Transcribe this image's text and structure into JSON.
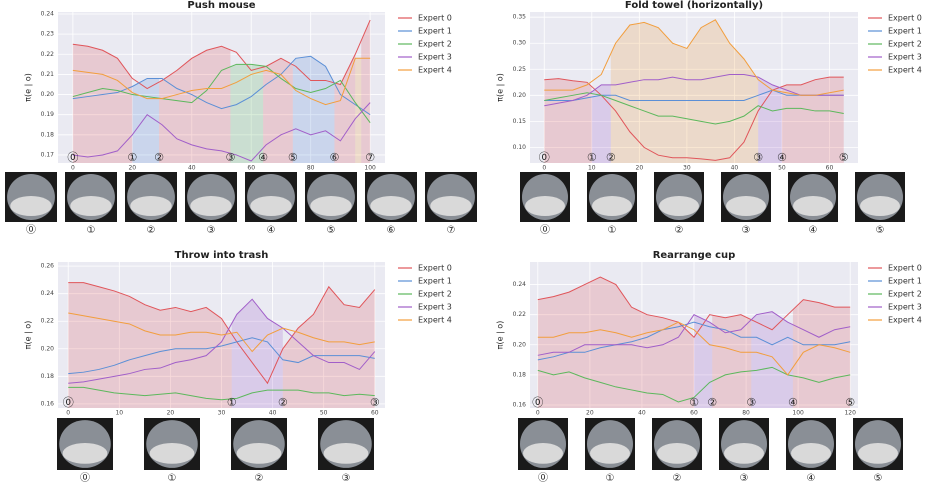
{
  "chart_data": [
    {
      "type": "line",
      "title": "Push mouse",
      "ylabel": "π(e | o)",
      "xlim": [
        -5,
        105
      ],
      "xticks": [
        0,
        20,
        40,
        60,
        80,
        100
      ],
      "ylim": [
        0.166,
        0.241
      ],
      "yticks": [
        0.17,
        0.18,
        0.19,
        {
          "value": 0.2,
          "label": "0.20"
        },
        0.21,
        0.22,
        0.23,
        0.24
      ],
      "x": [
        0,
        5,
        10,
        15,
        20,
        25,
        30,
        35,
        40,
        45,
        50,
        55,
        60,
        65,
        70,
        75,
        80,
        85,
        90,
        95,
        100
      ],
      "series": [
        {
          "name": "Expert 0",
          "color": "#e0555a",
          "values": [
            0.225,
            0.224,
            0.222,
            0.218,
            0.208,
            0.203,
            0.207,
            0.212,
            0.218,
            0.222,
            0.224,
            0.221,
            0.212,
            0.214,
            0.218,
            0.214,
            0.207,
            0.207,
            0.205,
            0.22,
            0.237
          ]
        },
        {
          "name": "Expert 1",
          "color": "#5b8fd6",
          "values": [
            0.198,
            0.199,
            0.2,
            0.201,
            0.204,
            0.208,
            0.208,
            0.203,
            0.2,
            0.196,
            0.193,
            0.195,
            0.199,
            0.205,
            0.21,
            0.218,
            0.219,
            0.214,
            0.2,
            0.195,
            0.19
          ]
        },
        {
          "name": "Expert 2",
          "color": "#5cb85c",
          "values": [
            0.199,
            0.201,
            0.203,
            0.202,
            0.2,
            0.199,
            0.198,
            0.197,
            0.196,
            0.202,
            0.212,
            0.215,
            0.215,
            0.214,
            0.208,
            0.203,
            0.201,
            0.203,
            0.207,
            0.196,
            0.186
          ]
        },
        {
          "name": "Expert 3",
          "color": "#a15fc9",
          "values": [
            0.17,
            0.169,
            0.17,
            0.172,
            0.18,
            0.19,
            0.185,
            0.178,
            0.175,
            0.173,
            0.172,
            0.17,
            0.167,
            0.175,
            0.18,
            0.183,
            0.18,
            0.182,
            0.177,
            0.188,
            0.196
          ]
        },
        {
          "name": "Expert 4",
          "color": "#f29e3d",
          "values": [
            0.212,
            0.211,
            0.21,
            0.207,
            0.201,
            0.198,
            0.198,
            0.2,
            0.202,
            0.203,
            0.203,
            0.206,
            0.21,
            0.212,
            0.21,
            0.202,
            0.198,
            0.195,
            0.197,
            0.218,
            0.218
          ]
        }
      ],
      "regions": [
        {
          "start": 0,
          "end": 20,
          "series": 0
        },
        {
          "start": 20,
          "end": 29,
          "series": 1
        },
        {
          "start": 29,
          "end": 53,
          "series": 0
        },
        {
          "start": 53,
          "end": 64,
          "series": 2
        },
        {
          "start": 64,
          "end": 74,
          "series": 0
        },
        {
          "start": 74,
          "end": 88,
          "series": 1
        },
        {
          "start": 88,
          "end": 95,
          "series": 0
        },
        {
          "start": 95,
          "end": 97,
          "series": 4
        },
        {
          "start": 97,
          "end": 100,
          "series": 0
        }
      ],
      "markers": [
        {
          "x": 0,
          "label": "⓪"
        },
        {
          "x": 20,
          "label": "①"
        },
        {
          "x": 29,
          "label": "②"
        },
        {
          "x": 53,
          "label": "③"
        },
        {
          "x": 64,
          "label": "④"
        },
        {
          "x": 74,
          "label": "⑤"
        },
        {
          "x": 88,
          "label": "⑥"
        },
        {
          "x": 100,
          "label": "⑦"
        }
      ]
    },
    {
      "type": "line",
      "title": "Fold towel (horizontally)",
      "ylabel": "π(e | o)",
      "xlim": [
        -3,
        66
      ],
      "xticks": [
        0,
        10,
        20,
        30,
        40,
        50,
        60
      ],
      "ylim": [
        0.07,
        0.36
      ],
      "yticks": [
        {
          "value": 0.1,
          "label": "0.10"
        },
        0.15,
        {
          "value": 0.2,
          "label": "0.20"
        },
        0.25,
        {
          "value": 0.3,
          "label": "0.30"
        },
        0.35
      ],
      "x": [
        0,
        3,
        6,
        9,
        12,
        15,
        18,
        21,
        24,
        27,
        30,
        33,
        36,
        39,
        42,
        45,
        48,
        51,
        54,
        57,
        60,
        63
      ],
      "series": [
        {
          "name": "Expert 0",
          "color": "#e0555a",
          "values": [
            0.23,
            0.232,
            0.228,
            0.225,
            0.2,
            0.17,
            0.13,
            0.1,
            0.085,
            0.08,
            0.08,
            0.078,
            0.075,
            0.08,
            0.11,
            0.17,
            0.21,
            0.22,
            0.22,
            0.23,
            0.235,
            0.235
          ]
        },
        {
          "name": "Expert 1",
          "color": "#5b8fd6",
          "values": [
            0.19,
            0.19,
            0.19,
            0.195,
            0.2,
            0.2,
            0.19,
            0.19,
            0.19,
            0.19,
            0.19,
            0.19,
            0.19,
            0.19,
            0.19,
            0.2,
            0.21,
            0.2,
            0.2,
            0.2,
            0.2,
            0.2
          ]
        },
        {
          "name": "Expert 2",
          "color": "#5cb85c",
          "values": [
            0.19,
            0.195,
            0.2,
            0.205,
            0.2,
            0.19,
            0.18,
            0.17,
            0.16,
            0.16,
            0.155,
            0.15,
            0.145,
            0.15,
            0.16,
            0.18,
            0.17,
            0.175,
            0.175,
            0.17,
            0.17,
            0.165
          ]
        },
        {
          "name": "Expert 3",
          "color": "#a15fc9",
          "values": [
            0.18,
            0.185,
            0.19,
            0.2,
            0.22,
            0.22,
            0.225,
            0.23,
            0.23,
            0.235,
            0.23,
            0.23,
            0.235,
            0.24,
            0.24,
            0.235,
            0.22,
            0.21,
            0.2,
            0.2,
            0.2,
            0.2
          ]
        },
        {
          "name": "Expert 4",
          "color": "#f29e3d",
          "values": [
            0.21,
            0.21,
            0.21,
            0.22,
            0.24,
            0.3,
            0.335,
            0.34,
            0.33,
            0.3,
            0.29,
            0.33,
            0.345,
            0.3,
            0.27,
            0.23,
            0.21,
            0.205,
            0.2,
            0.2,
            0.205,
            0.21
          ]
        }
      ],
      "regions": [
        {
          "start": 0,
          "end": 10,
          "series": 0
        },
        {
          "start": 10,
          "end": 14,
          "series": 3
        },
        {
          "start": 14,
          "end": 45,
          "series": 4
        },
        {
          "start": 45,
          "end": 50,
          "series": 3
        },
        {
          "start": 50,
          "end": 63,
          "series": 0
        }
      ],
      "markers": [
        {
          "x": 0,
          "label": "⓪"
        },
        {
          "x": 10,
          "label": "①"
        },
        {
          "x": 14,
          "label": "②"
        },
        {
          "x": 45,
          "label": "③"
        },
        {
          "x": 50,
          "label": "④"
        },
        {
          "x": 63,
          "label": "⑤"
        }
      ]
    },
    {
      "type": "line",
      "title": "Throw into trash",
      "ylabel": "π(e | o)",
      "xlim": [
        -2,
        62
      ],
      "xticks": [
        0,
        10,
        20,
        30,
        40,
        50,
        60
      ],
      "ylim": [
        0.157,
        0.263
      ],
      "yticks": [
        0.16,
        0.18,
        {
          "value": 0.2,
          "label": "0.20"
        },
        0.22,
        0.24,
        0.26
      ],
      "x": [
        0,
        3,
        6,
        9,
        12,
        15,
        18,
        21,
        24,
        27,
        30,
        33,
        36,
        39,
        42,
        45,
        48,
        51,
        54,
        57,
        60
      ],
      "series": [
        {
          "name": "Expert 0",
          "color": "#e0555a",
          "values": [
            0.248,
            0.248,
            0.245,
            0.242,
            0.238,
            0.232,
            0.228,
            0.23,
            0.227,
            0.23,
            0.222,
            0.205,
            0.19,
            0.175,
            0.2,
            0.215,
            0.225,
            0.245,
            0.232,
            0.23,
            0.243
          ]
        },
        {
          "name": "Expert 1",
          "color": "#5b8fd6",
          "values": [
            0.182,
            0.183,
            0.185,
            0.188,
            0.192,
            0.195,
            0.198,
            0.2,
            0.2,
            0.2,
            0.202,
            0.205,
            0.208,
            0.205,
            0.192,
            0.19,
            0.195,
            0.195,
            0.195,
            0.195,
            0.193
          ]
        },
        {
          "name": "Expert 2",
          "color": "#5cb85c",
          "values": [
            0.172,
            0.172,
            0.17,
            0.168,
            0.167,
            0.166,
            0.167,
            0.168,
            0.166,
            0.164,
            0.163,
            0.164,
            0.168,
            0.17,
            0.17,
            0.17,
            0.168,
            0.168,
            0.166,
            0.167,
            0.166
          ]
        },
        {
          "name": "Expert 3",
          "color": "#a15fc9",
          "values": [
            0.175,
            0.176,
            0.178,
            0.18,
            0.182,
            0.185,
            0.186,
            0.19,
            0.192,
            0.195,
            0.205,
            0.225,
            0.236,
            0.222,
            0.215,
            0.205,
            0.195,
            0.19,
            0.19,
            0.185,
            0.198
          ]
        },
        {
          "name": "Expert 4",
          "color": "#f29e3d",
          "values": [
            0.226,
            0.224,
            0.222,
            0.22,
            0.218,
            0.213,
            0.21,
            0.21,
            0.212,
            0.212,
            0.21,
            0.212,
            0.198,
            0.21,
            0.215,
            0.212,
            0.208,
            0.205,
            0.205,
            0.203,
            0.205
          ]
        }
      ],
      "regions": [
        {
          "start": 0,
          "end": 32,
          "series": 0
        },
        {
          "start": 32,
          "end": 42,
          "series": 3
        },
        {
          "start": 42,
          "end": 60,
          "series": 0
        }
      ],
      "markers": [
        {
          "x": 0,
          "label": "⓪"
        },
        {
          "x": 32,
          "label": "①"
        },
        {
          "x": 42,
          "label": "②"
        },
        {
          "x": 60,
          "label": "③"
        }
      ]
    },
    {
      "type": "line",
      "title": "Rearrange cup",
      "ylabel": "π(e | o)",
      "xlim": [
        -3,
        123
      ],
      "xticks": [
        0,
        20,
        40,
        60,
        80,
        100,
        120
      ],
      "ylim": [
        0.158,
        0.255
      ],
      "yticks": [
        0.16,
        0.18,
        {
          "value": 0.2,
          "label": "0.20"
        },
        0.22,
        0.24
      ],
      "x": [
        0,
        6,
        12,
        18,
        24,
        30,
        36,
        42,
        48,
        54,
        60,
        66,
        72,
        78,
        84,
        90,
        96,
        102,
        108,
        114,
        120
      ],
      "series": [
        {
          "name": "Expert 0",
          "color": "#e0555a",
          "values": [
            0.23,
            0.232,
            0.235,
            0.24,
            0.245,
            0.24,
            0.225,
            0.22,
            0.218,
            0.215,
            0.205,
            0.22,
            0.218,
            0.22,
            0.215,
            0.21,
            0.22,
            0.23,
            0.228,
            0.225,
            0.225
          ]
        },
        {
          "name": "Expert 1",
          "color": "#5b8fd6",
          "values": [
            0.19,
            0.192,
            0.195,
            0.195,
            0.198,
            0.2,
            0.202,
            0.205,
            0.21,
            0.212,
            0.215,
            0.212,
            0.21,
            0.205,
            0.205,
            0.2,
            0.205,
            0.2,
            0.2,
            0.2,
            0.202
          ]
        },
        {
          "name": "Expert 2",
          "color": "#5cb85c",
          "values": [
            0.183,
            0.18,
            0.182,
            0.178,
            0.175,
            0.172,
            0.17,
            0.168,
            0.167,
            0.162,
            0.165,
            0.175,
            0.18,
            0.182,
            0.183,
            0.185,
            0.18,
            0.178,
            0.175,
            0.178,
            0.18
          ]
        },
        {
          "name": "Expert 3",
          "color": "#a15fc9",
          "values": [
            0.193,
            0.195,
            0.195,
            0.2,
            0.2,
            0.2,
            0.2,
            0.198,
            0.2,
            0.205,
            0.22,
            0.215,
            0.208,
            0.21,
            0.22,
            0.222,
            0.215,
            0.21,
            0.205,
            0.21,
            0.212
          ]
        },
        {
          "name": "Expert 4",
          "color": "#f29e3d",
          "values": [
            0.205,
            0.205,
            0.208,
            0.208,
            0.21,
            0.208,
            0.205,
            0.208,
            0.21,
            0.215,
            0.21,
            0.2,
            0.198,
            0.195,
            0.195,
            0.192,
            0.18,
            0.195,
            0.2,
            0.198,
            0.195
          ]
        }
      ],
      "regions": [
        {
          "start": 0,
          "end": 60,
          "series": 0
        },
        {
          "start": 60,
          "end": 67,
          "series": 3
        },
        {
          "start": 67,
          "end": 82,
          "series": 0
        },
        {
          "start": 82,
          "end": 98,
          "series": 3
        },
        {
          "start": 98,
          "end": 120,
          "series": 0
        }
      ],
      "markers": [
        {
          "x": 0,
          "label": "⓪"
        },
        {
          "x": 60,
          "label": "①"
        },
        {
          "x": 67,
          "label": "②"
        },
        {
          "x": 82,
          "label": "③"
        },
        {
          "x": 98,
          "label": "④"
        },
        {
          "x": 120,
          "label": "⑤"
        }
      ]
    }
  ]
}
